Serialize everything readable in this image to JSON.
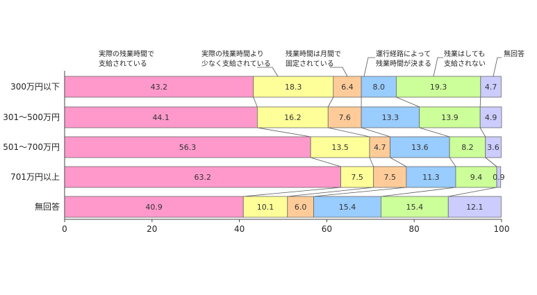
{
  "chart_data": {
    "type": "bar",
    "orientation": "horizontal",
    "stacked": true,
    "title": "",
    "xlabel": "",
    "ylabel": "",
    "xlim": [
      0,
      100
    ],
    "xticks": [
      "0",
      "20",
      "40",
      "60",
      "80",
      "100"
    ],
    "categories": [
      "300万円以下",
      "301～500万円",
      "501～700万円",
      "701万円以上",
      "無回答"
    ],
    "series": [
      {
        "name": "実際の残業時間で支給されている",
        "label_lines": [
          "実際の残業時間で",
          "支給されている"
        ],
        "color": "#ff99cc",
        "values": [
          43.2,
          44.1,
          56.3,
          63.2,
          40.9
        ]
      },
      {
        "name": "実際の残業時間より少なく支給されている",
        "label_lines": [
          "実際の残業時間より",
          "少なく支給されている"
        ],
        "color": "#ffff99",
        "values": [
          18.3,
          16.2,
          13.5,
          7.5,
          10.1
        ]
      },
      {
        "name": "残業時間は月間で固定されている",
        "label_lines": [
          "残業時間は月間で",
          "固定されている"
        ],
        "color": "#ffcc99",
        "values": [
          6.4,
          7.6,
          4.7,
          7.5,
          6.0
        ]
      },
      {
        "name": "運行経路によって残業時間が決まる",
        "label_lines": [
          "運行経路によって",
          "残業時間が決まる"
        ],
        "color": "#99ccff",
        "values": [
          8.0,
          13.3,
          13.6,
          11.3,
          15.4
        ]
      },
      {
        "name": "残業はしても支給されない",
        "label_lines": [
          "残業はしても",
          "支給されない"
        ],
        "color": "#ccff99",
        "values": [
          19.3,
          13.9,
          8.2,
          9.4,
          15.4
        ]
      },
      {
        "name": "無回答",
        "label_lines": [
          "無回答"
        ],
        "color": "#ccccff",
        "values": [
          4.7,
          4.9,
          3.6,
          0.9,
          12.1
        ]
      }
    ],
    "data_labels": [
      [
        "43.2",
        "18.3",
        "6.4",
        "8.0",
        "19.3",
        "4.7"
      ],
      [
        "44.1",
        "16.2",
        "7.6",
        "13.3",
        "13.9",
        "4.9"
      ],
      [
        "56.3",
        "13.5",
        "4.7",
        "13.6",
        "8.2",
        "3.6"
      ],
      [
        "63.2",
        "7.5",
        "7.5",
        "11.3",
        "9.4",
        "0.9"
      ],
      [
        "40.9",
        "10.1",
        "6.0",
        "15.4",
        "15.4",
        "12.1"
      ]
    ],
    "grid": false,
    "legend": "top, labels with leader lines",
    "connector_lines": true
  }
}
